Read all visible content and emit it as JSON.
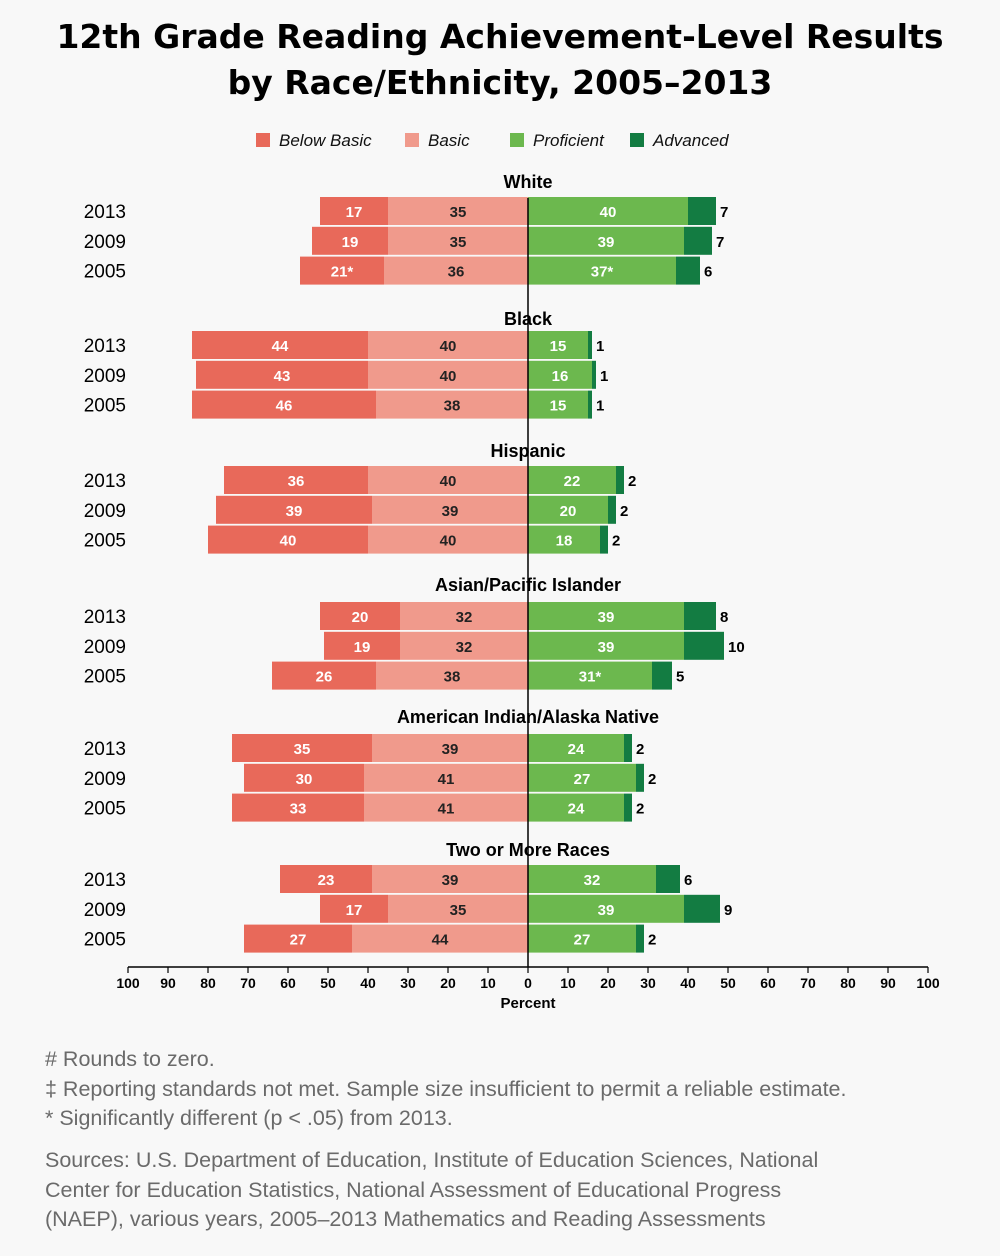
{
  "title": {
    "line1": "12th Grade Reading Achievement-Level Results",
    "line2": "by Race/Ethnicity, 2005–2013"
  },
  "colors": {
    "below_basic": "#e8695a",
    "basic": "#f09a8c",
    "proficient": "#6cb84e",
    "advanced": "#137c42",
    "axis": "#000000"
  },
  "notes": {
    "rounds_zero": "# Rounds to zero.",
    "reporting": "‡ Reporting standards not met. Sample size insufficient to permit a reliable estimate.",
    "significant": "* Significantly different (p < .05) from 2013.",
    "sources_1": "Sources: U.S. Department of Education, Institute of Education Sciences, National",
    "sources_2": "Center for Education Statistics, National Assessment of Educational Progress",
    "sources_3": "(NAEP), various years, 2005–2013 Mathematics and Reading Assessments"
  },
  "chart_data": {
    "type": "bar",
    "orientation": "horizontal",
    "stacking": "diverging",
    "xlabel": "Percent",
    "xlim": [
      -100,
      100
    ],
    "xticks": [
      100,
      90,
      80,
      70,
      60,
      50,
      40,
      30,
      20,
      10,
      0,
      10,
      20,
      30,
      40,
      50,
      60,
      70,
      80,
      90,
      100
    ],
    "legend": [
      "Below Basic",
      "Basic",
      "Proficient",
      "Advanced"
    ],
    "legend_position": "top",
    "groups": [
      {
        "name": "White",
        "rows": [
          {
            "year": "2013",
            "below_basic": 17,
            "basic": 35,
            "proficient": 40,
            "advanced": 7,
            "labels": [
              "17",
              "35",
              "40",
              "7"
            ]
          },
          {
            "year": "2009",
            "below_basic": 19,
            "basic": 35,
            "proficient": 39,
            "advanced": 7,
            "labels": [
              "19",
              "35",
              "39",
              "7"
            ]
          },
          {
            "year": "2005",
            "below_basic": 21,
            "basic": 36,
            "proficient": 37,
            "advanced": 6,
            "labels": [
              "21*",
              "36",
              "37*",
              "6"
            ]
          }
        ]
      },
      {
        "name": "Black",
        "rows": [
          {
            "year": "2013",
            "below_basic": 44,
            "basic": 40,
            "proficient": 15,
            "advanced": 1,
            "labels": [
              "44",
              "40",
              "15",
              "1"
            ]
          },
          {
            "year": "2009",
            "below_basic": 43,
            "basic": 40,
            "proficient": 16,
            "advanced": 1,
            "labels": [
              "43",
              "40",
              "16",
              "1"
            ]
          },
          {
            "year": "2005",
            "below_basic": 46,
            "basic": 38,
            "proficient": 15,
            "advanced": 1,
            "labels": [
              "46",
              "38",
              "15",
              "1"
            ]
          }
        ]
      },
      {
        "name": "Hispanic",
        "rows": [
          {
            "year": "2013",
            "below_basic": 36,
            "basic": 40,
            "proficient": 22,
            "advanced": 2,
            "labels": [
              "36",
              "40",
              "22",
              "2"
            ]
          },
          {
            "year": "2009",
            "below_basic": 39,
            "basic": 39,
            "proficient": 20,
            "advanced": 2,
            "labels": [
              "39",
              "39",
              "20",
              "2"
            ]
          },
          {
            "year": "2005",
            "below_basic": 40,
            "basic": 40,
            "proficient": 18,
            "advanced": 2,
            "labels": [
              "40",
              "40",
              "18",
              "2"
            ]
          }
        ]
      },
      {
        "name": "Asian/Pacific Islander",
        "rows": [
          {
            "year": "2013",
            "below_basic": 20,
            "basic": 32,
            "proficient": 39,
            "advanced": 8,
            "labels": [
              "20",
              "32",
              "39",
              "8"
            ]
          },
          {
            "year": "2009",
            "below_basic": 19,
            "basic": 32,
            "proficient": 39,
            "advanced": 10,
            "labels": [
              "19",
              "32",
              "39",
              "10"
            ]
          },
          {
            "year": "2005",
            "below_basic": 26,
            "basic": 38,
            "proficient": 31,
            "advanced": 5,
            "labels": [
              "26",
              "38",
              "31*",
              "5"
            ]
          }
        ]
      },
      {
        "name": "American Indian/Alaska Native",
        "rows": [
          {
            "year": "2013",
            "below_basic": 35,
            "basic": 39,
            "proficient": 24,
            "advanced": 2,
            "labels": [
              "35",
              "39",
              "24",
              "2"
            ]
          },
          {
            "year": "2009",
            "below_basic": 30,
            "basic": 41,
            "proficient": 27,
            "advanced": 2,
            "labels": [
              "30",
              "41",
              "27",
              "2"
            ]
          },
          {
            "year": "2005",
            "below_basic": 33,
            "basic": 41,
            "proficient": 24,
            "advanced": 2,
            "labels": [
              "33",
              "41",
              "24",
              "2"
            ]
          }
        ]
      },
      {
        "name": "Two or More Races",
        "rows": [
          {
            "year": "2013",
            "below_basic": 23,
            "basic": 39,
            "proficient": 32,
            "advanced": 6,
            "labels": [
              "23",
              "39",
              "32",
              "6"
            ]
          },
          {
            "year": "2009",
            "below_basic": 17,
            "basic": 35,
            "proficient": 39,
            "advanced": 9,
            "labels": [
              "17",
              "35",
              "39",
              "9"
            ]
          },
          {
            "year": "2005",
            "below_basic": 27,
            "basic": 44,
            "proficient": 27,
            "advanced": 2,
            "labels": [
              "27",
              "44",
              "27",
              "2"
            ]
          }
        ]
      }
    ]
  }
}
